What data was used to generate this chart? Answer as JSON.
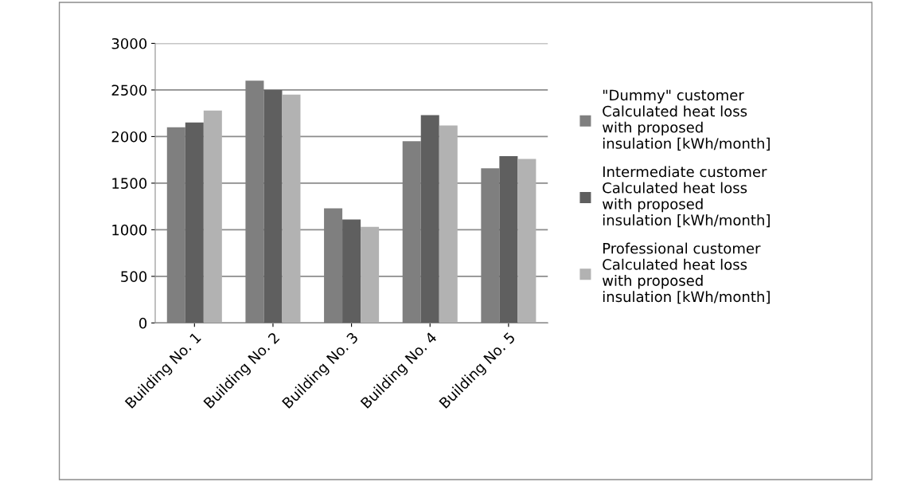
{
  "chart_data": {
    "type": "bar",
    "categories": [
      "Building No. 1",
      "Building No. 2",
      "Building No. 3",
      "Building No. 4",
      "Building No. 5"
    ],
    "series": [
      {
        "name": "\"Dummy\" customer Calculated heat loss with proposed insulation [kWh/month]",
        "color": "#7f7f7f",
        "values": [
          2100,
          2600,
          1230,
          1950,
          1660
        ]
      },
      {
        "name": "Intermediate customer Calculated heat loss with proposed insulation [kWh/month]",
        "color": "#5f5f5f",
        "values": [
          2150,
          2500,
          1110,
          2230,
          1790
        ]
      },
      {
        "name": "Professional customer Calculated heat loss with proposed insulation [kWh/month]",
        "color": "#b2b2b2",
        "values": [
          2280,
          2450,
          1030,
          2120,
          1760
        ]
      }
    ],
    "ylim": [
      0,
      3000
    ],
    "yticks": [
      0,
      500,
      1000,
      1500,
      2000,
      2500,
      3000
    ],
    "grid": "y",
    "legend": "right"
  }
}
